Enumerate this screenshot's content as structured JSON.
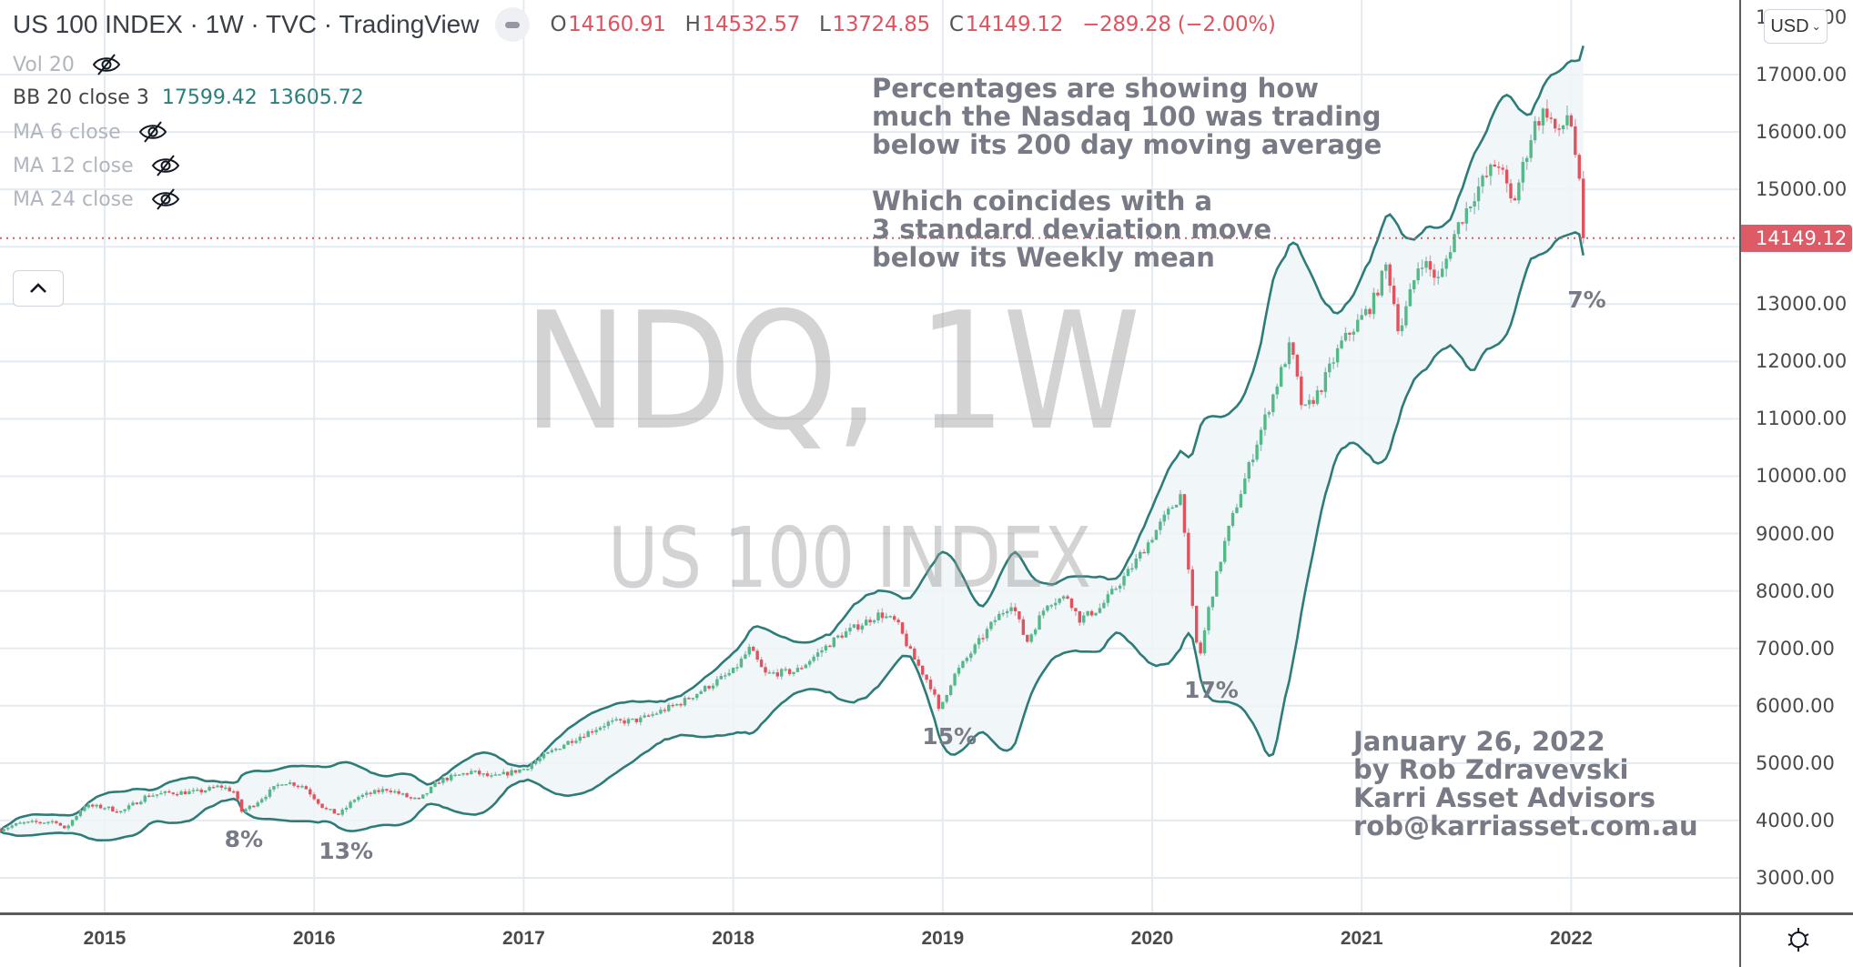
{
  "header": {
    "symbol_title": "US 100 INDEX · 1W · TVC · TradingView",
    "ohlc": [
      {
        "key": "O",
        "value": "14160.91"
      },
      {
        "key": "H",
        "value": "14532.57"
      },
      {
        "key": "L",
        "value": "13724.85"
      },
      {
        "key": "C",
        "value": "14149.12"
      }
    ],
    "change": "−289.28 (−2.00%)"
  },
  "indicators": [
    {
      "label": "Vol 20",
      "hidden": true
    },
    {
      "label": "BB 20 close 3",
      "hidden": false,
      "values": [
        "17599.42",
        "13605.72"
      ]
    },
    {
      "label": "MA 6 close",
      "hidden": true
    },
    {
      "label": "MA 12 close",
      "hidden": true
    },
    {
      "label": "MA 24 close",
      "hidden": true
    }
  ],
  "watermark": {
    "line1": "NDQ, 1W",
    "line2": "US 100 INDEX"
  },
  "currency_button": "USD",
  "last_price_label": "14149.12",
  "notes": {
    "top": "Percentages are showing how\nmuch the Nasdaq 100 was trading\nbelow its 200 day moving average\n\nWhich coincides with a\n3 standard deviation move\nbelow its Weekly mean",
    "signature": "January 26, 2022\nby Rob Zdravevski\nKarri Asset Advisors\nrob@karriasset.com.au"
  },
  "colors": {
    "up": "#53b987",
    "down": "#e0525e",
    "band": "#2e7c78",
    "band_fill": "#eef5f7",
    "grid": "#e3eaf0",
    "last_price": "#dc5b66"
  },
  "chart_data": {
    "type": "candlestick",
    "title": "US 100 INDEX · 1W · TVC",
    "xlabel": "",
    "ylabel": "USD",
    "y_ticks": [
      3000,
      4000,
      5000,
      6000,
      7000,
      8000,
      9000,
      10000,
      11000,
      12000,
      13000,
      14000,
      15000,
      16000,
      17000
    ],
    "y_tick_labels": [
      "3000.00",
      "4000.00",
      "5000.00",
      "6000.00",
      "7000.00",
      "8000.00",
      "9000.00",
      "10000.00",
      "11000.00",
      "12000.00",
      "13000.00",
      "14000.00",
      "15000.00",
      "16000.00",
      "17000.00"
    ],
    "ylim": [
      2500,
      18000
    ],
    "x_ticks": [
      "2015",
      "2016",
      "2017",
      "2018",
      "2019",
      "2020",
      "2021",
      "2022"
    ],
    "xlim": [
      2014.5,
      2022.9
    ],
    "grid": true,
    "last_close": 14149.12,
    "indicator": {
      "name": "Bollinger Bands",
      "length": 20,
      "source": "close",
      "stddev": 3,
      "upper": 17599.42,
      "lower": 13605.72
    },
    "approx_weekly_close_keypoints": [
      {
        "t": 2014.5,
        "close": 3850
      },
      {
        "t": 2014.6,
        "close": 3950
      },
      {
        "t": 2014.78,
        "close": 3990
      },
      {
        "t": 2014.8,
        "close": 3800
      },
      {
        "t": 2014.9,
        "close": 4250
      },
      {
        "t": 2015.0,
        "close": 4230
      },
      {
        "t": 2015.08,
        "close": 4150
      },
      {
        "t": 2015.2,
        "close": 4430
      },
      {
        "t": 2015.3,
        "close": 4480
      },
      {
        "t": 2015.45,
        "close": 4500
      },
      {
        "t": 2015.55,
        "close": 4600
      },
      {
        "t": 2015.62,
        "close": 4500
      },
      {
        "t": 2015.65,
        "close": 4150
      },
      {
        "t": 2015.7,
        "close": 4250
      },
      {
        "t": 2015.85,
        "close": 4680
      },
      {
        "t": 2015.95,
        "close": 4600
      },
      {
        "t": 2016.05,
        "close": 4200
      },
      {
        "t": 2016.12,
        "close": 4100
      },
      {
        "t": 2016.2,
        "close": 4400
      },
      {
        "t": 2016.35,
        "close": 4550
      },
      {
        "t": 2016.45,
        "close": 4400
      },
      {
        "t": 2016.5,
        "close": 4350
      },
      {
        "t": 2016.6,
        "close": 4700
      },
      {
        "t": 2016.75,
        "close": 4850
      },
      {
        "t": 2016.85,
        "close": 4750
      },
      {
        "t": 2017.0,
        "close": 4900
      },
      {
        "t": 2017.2,
        "close": 5350
      },
      {
        "t": 2017.4,
        "close": 5700
      },
      {
        "t": 2017.55,
        "close": 5750
      },
      {
        "t": 2017.75,
        "close": 6050
      },
      {
        "t": 2018.0,
        "close": 6600
      },
      {
        "t": 2018.08,
        "close": 7000
      },
      {
        "t": 2018.15,
        "close": 6550
      },
      {
        "t": 2018.3,
        "close": 6600
      },
      {
        "t": 2018.5,
        "close": 7200
      },
      {
        "t": 2018.7,
        "close": 7600
      },
      {
        "t": 2018.78,
        "close": 7450
      },
      {
        "t": 2018.85,
        "close": 6900
      },
      {
        "t": 2018.95,
        "close": 6300
      },
      {
        "t": 2018.98,
        "close": 5900
      },
      {
        "t": 2019.05,
        "close": 6500
      },
      {
        "t": 2019.25,
        "close": 7500
      },
      {
        "t": 2019.33,
        "close": 7800
      },
      {
        "t": 2019.4,
        "close": 7100
      },
      {
        "t": 2019.5,
        "close": 7800
      },
      {
        "t": 2019.6,
        "close": 7900
      },
      {
        "t": 2019.65,
        "close": 7500
      },
      {
        "t": 2019.75,
        "close": 7700
      },
      {
        "t": 2019.9,
        "close": 8400
      },
      {
        "t": 2020.1,
        "close": 9500
      },
      {
        "t": 2020.14,
        "close": 9700
      },
      {
        "t": 2020.17,
        "close": 8400
      },
      {
        "t": 2020.21,
        "close": 7100
      },
      {
        "t": 2020.23,
        "close": 6900
      },
      {
        "t": 2020.27,
        "close": 7700
      },
      {
        "t": 2020.35,
        "close": 8900
      },
      {
        "t": 2020.5,
        "close": 10600
      },
      {
        "t": 2020.66,
        "close": 12300
      },
      {
        "t": 2020.72,
        "close": 11100
      },
      {
        "t": 2020.8,
        "close": 11500
      },
      {
        "t": 2020.9,
        "close": 12300
      },
      {
        "t": 2021.05,
        "close": 13000
      },
      {
        "t": 2021.12,
        "close": 13700
      },
      {
        "t": 2021.18,
        "close": 12500
      },
      {
        "t": 2021.28,
        "close": 13800
      },
      {
        "t": 2021.37,
        "close": 13400
      },
      {
        "t": 2021.45,
        "close": 14300
      },
      {
        "t": 2021.55,
        "close": 15000
      },
      {
        "t": 2021.65,
        "close": 15500
      },
      {
        "t": 2021.72,
        "close": 14700
      },
      {
        "t": 2021.82,
        "close": 16100
      },
      {
        "t": 2021.88,
        "close": 16400
      },
      {
        "t": 2021.94,
        "close": 15900
      },
      {
        "t": 2021.99,
        "close": 16400
      },
      {
        "t": 2022.02,
        "close": 15600
      },
      {
        "t": 2022.05,
        "close": 14700
      },
      {
        "t": 2022.07,
        "close": 14149.12
      }
    ],
    "annotations": [
      {
        "label": "8%",
        "t": 2015.65,
        "price": 3900
      },
      {
        "label": "13%",
        "t": 2016.1,
        "price": 3700
      },
      {
        "label": "15%",
        "t": 2018.98,
        "price": 5700
      },
      {
        "label": "17%",
        "t": 2020.23,
        "price": 6500
      },
      {
        "label": "7%",
        "t": 2022.06,
        "price": 13300
      }
    ]
  }
}
